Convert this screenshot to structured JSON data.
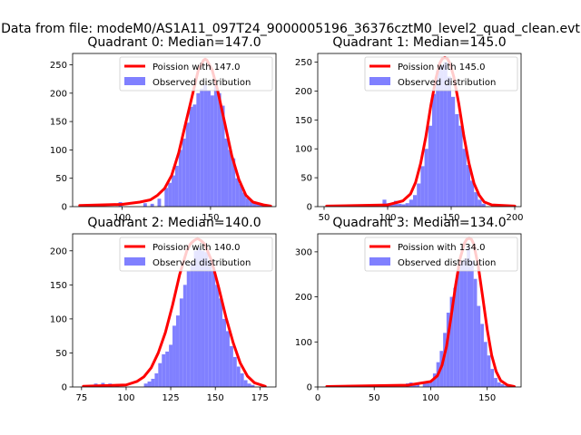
{
  "figure": {
    "title": "Data from file: modeM0/AS1A11_097T24_9000005196_36376cztM0_level2_quad_clean.evt"
  },
  "colors": {
    "poisson": "#ff0000",
    "observed": "#8080ff"
  },
  "chart_data": [
    {
      "type": "bar",
      "title": "Quadrant 0: Median=147.0",
      "xlim": [
        72,
        187
      ],
      "ylim": [
        0,
        270
      ],
      "xticks": [
        100,
        150
      ],
      "yticks": [
        0,
        50,
        100,
        150,
        200,
        250
      ],
      "legend": {
        "placement": "upper-right",
        "entries": [
          "Poission with 147.0",
          "Observed distribution"
        ]
      },
      "bin_width": 2.0,
      "observed": {
        "bin_starts": [
          98,
          112,
          116,
          120,
          124,
          126,
          128,
          130,
          132,
          134,
          136,
          138,
          140,
          142,
          144,
          146,
          148,
          150,
          152,
          154,
          156,
          158,
          160,
          162,
          164,
          166,
          168,
          170,
          172,
          174,
          176,
          178,
          180
        ],
        "counts": [
          8,
          6,
          5,
          14,
          33,
          42,
          55,
          72,
          100,
          120,
          148,
          176,
          180,
          200,
          208,
          215,
          205,
          196,
          216,
          200,
          178,
          120,
          100,
          85,
          50,
          40,
          25,
          15,
          10,
          8,
          5,
          4,
          3
        ]
      },
      "poisson": {
        "x": [
          76,
          100,
          110,
          116,
          120,
          124,
          128,
          132,
          136,
          140,
          143,
          146,
          147,
          148,
          151,
          154,
          158,
          162,
          166,
          170,
          174,
          180,
          184
        ],
        "y": [
          2,
          4,
          8,
          12,
          20,
          32,
          55,
          95,
          148,
          200,
          240,
          258,
          260,
          258,
          240,
          205,
          148,
          90,
          48,
          20,
          8,
          3,
          1
        ]
      }
    },
    {
      "type": "bar",
      "title": "Quadrant 1: Median=145.0",
      "xlim": [
        45,
        205
      ],
      "ylim": [
        0,
        265
      ],
      "xticks": [
        50,
        100,
        150,
        200
      ],
      "yticks": [
        0,
        50,
        100,
        150,
        200,
        250
      ],
      "legend": {
        "placement": "upper-right",
        "entries": [
          "Poission with 145.0",
          "Observed distribution"
        ]
      },
      "bin_width": 3.0,
      "observed": {
        "bin_starts": [
          81,
          84,
          87,
          90,
          96,
          99,
          102,
          105,
          108,
          111,
          114,
          117,
          120,
          123,
          126,
          129,
          132,
          135,
          138,
          141,
          144,
          147,
          150,
          153,
          156,
          159,
          162,
          165,
          168,
          171,
          174
        ],
        "counts": [
          4,
          4,
          4,
          4,
          12,
          6,
          4,
          10,
          5,
          4,
          6,
          12,
          20,
          40,
          70,
          100,
          140,
          195,
          235,
          245,
          250,
          225,
          190,
          160,
          140,
          100,
          72,
          45,
          25,
          12,
          5
        ]
      },
      "poisson": {
        "x": [
          52,
          100,
          112,
          118,
          122,
          126,
          130,
          134,
          138,
          141,
          143,
          145,
          147,
          149,
          152,
          156,
          160,
          164,
          168,
          172,
          176,
          182,
          200
        ],
        "y": [
          1,
          3,
          10,
          22,
          42,
          75,
          120,
          175,
          222,
          248,
          256,
          258,
          256,
          248,
          225,
          178,
          122,
          75,
          40,
          20,
          8,
          3,
          1
        ]
      }
    },
    {
      "type": "bar",
      "title": "Quadrant 2: Median=140.0",
      "xlim": [
        70,
        184
      ],
      "ylim": [
        0,
        225
      ],
      "xticks": [
        75,
        100,
        125,
        150,
        175
      ],
      "yticks": [
        0,
        50,
        100,
        150,
        200
      ],
      "legend": {
        "placement": "upper-right",
        "entries": [
          "Poission with 140.0",
          "Observed distribution"
        ]
      },
      "bin_width": 2.0,
      "observed": {
        "bin_starts": [
          82,
          86,
          90,
          94,
          110,
          112,
          114,
          116,
          118,
          120,
          122,
          124,
          126,
          128,
          130,
          132,
          134,
          136,
          138,
          140,
          142,
          144,
          146,
          148,
          150,
          152,
          154,
          156,
          158,
          160,
          162,
          164,
          166,
          168,
          170
        ],
        "counts": [
          5,
          6,
          5,
          4,
          5,
          8,
          12,
          20,
          35,
          48,
          52,
          62,
          90,
          105,
          130,
          150,
          170,
          182,
          200,
          205,
          200,
          198,
          185,
          170,
          150,
          130,
          100,
          82,
          60,
          44,
          30,
          20,
          10,
          5,
          3
        ]
      },
      "poisson": {
        "x": [
          76,
          100,
          106,
          110,
          114,
          118,
          122,
          126,
          130,
          134,
          136,
          138,
          140,
          142,
          144,
          148,
          152,
          156,
          160,
          164,
          168,
          172,
          178
        ],
        "y": [
          1,
          3,
          8,
          15,
          28,
          50,
          80,
          120,
          165,
          200,
          210,
          215,
          218,
          215,
          210,
          185,
          145,
          102,
          65,
          35,
          16,
          6,
          1
        ]
      }
    },
    {
      "type": "bar",
      "title": "Quadrant 3: Median=134.0",
      "xlim": [
        0,
        180
      ],
      "ylim": [
        0,
        340
      ],
      "xticks": [
        0,
        50,
        100,
        150
      ],
      "yticks": [
        0,
        100,
        200,
        300
      ],
      "legend": {
        "placement": "upper-right",
        "entries": [
          "Poission with 134.0",
          "Observed distribution"
        ]
      },
      "bin_width": 3.0,
      "observed": {
        "bin_starts": [
          78,
          81,
          84,
          87,
          93,
          96,
          99,
          102,
          105,
          108,
          111,
          114,
          117,
          120,
          123,
          126,
          129,
          132,
          135,
          138,
          141,
          144,
          147,
          150,
          153,
          156,
          159,
          162,
          165
        ],
        "counts": [
          8,
          10,
          6,
          5,
          10,
          8,
          12,
          30,
          55,
          80,
          120,
          165,
          200,
          220,
          260,
          280,
          285,
          310,
          280,
          240,
          180,
          140,
          100,
          70,
          40,
          20,
          10,
          6,
          3
        ]
      },
      "poisson": {
        "x": [
          8,
          80,
          100,
          106,
          110,
          114,
          118,
          122,
          126,
          130,
          132,
          134,
          136,
          138,
          142,
          146,
          150,
          154,
          158,
          162,
          168,
          174
        ],
        "y": [
          1,
          4,
          12,
          25,
          48,
          90,
          155,
          225,
          285,
          320,
          328,
          330,
          328,
          318,
          270,
          200,
          128,
          70,
          34,
          14,
          4,
          1
        ]
      }
    }
  ]
}
